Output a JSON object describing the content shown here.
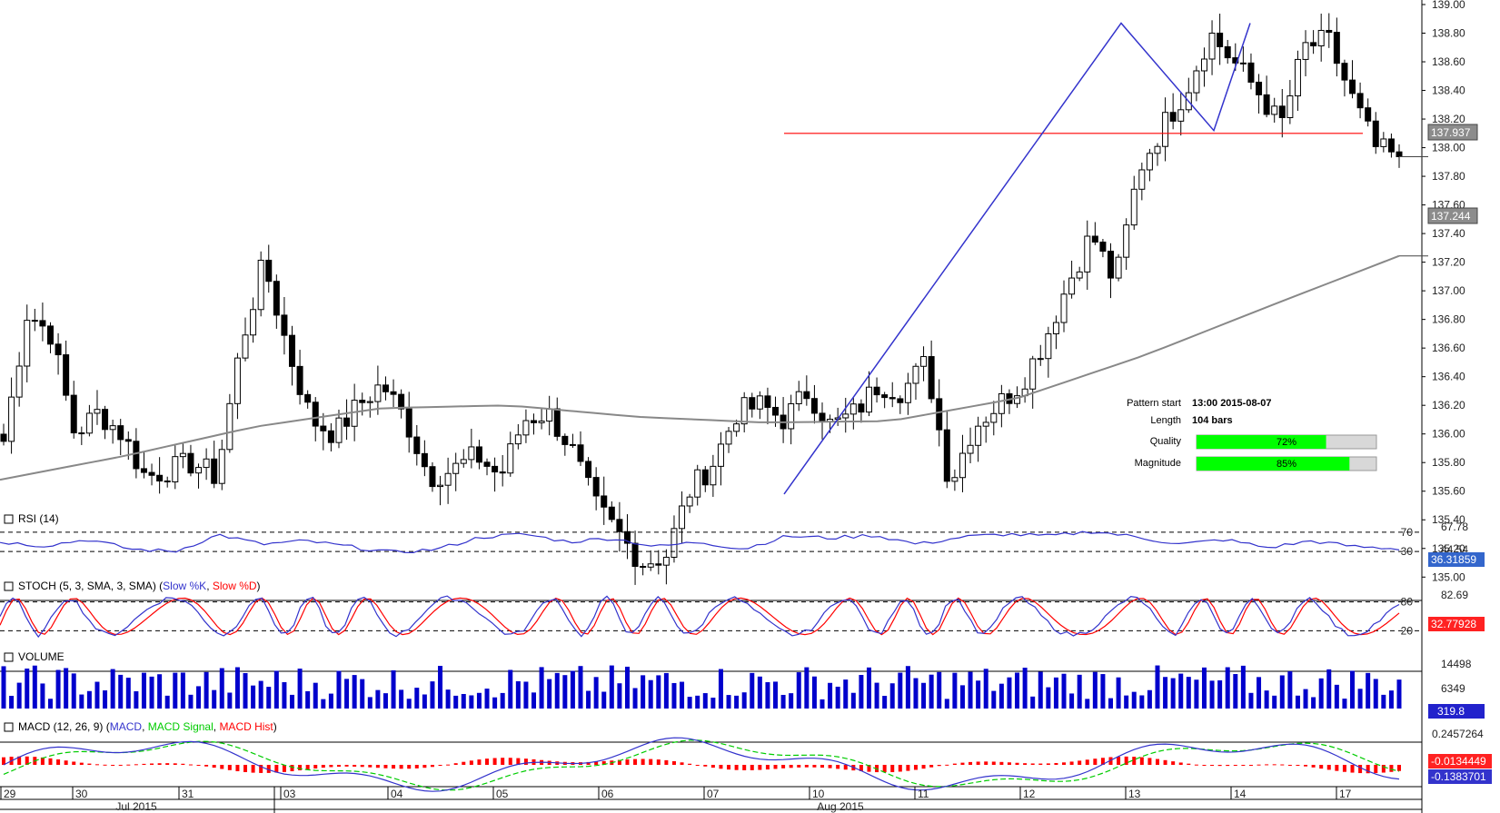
{
  "chart_data": {
    "type": "candlestick",
    "price_axis": {
      "ticks": [
        "139.00",
        "138.80",
        "138.60",
        "138.40",
        "138.20",
        "138.00",
        "137.80",
        "137.60",
        "137.40",
        "137.20",
        "137.00",
        "136.80",
        "136.60",
        "136.40",
        "136.20",
        "136.00",
        "135.80",
        "135.60",
        "135.40",
        "135.20",
        "135.00"
      ],
      "ylim": [
        134.97,
        139.0
      ],
      "last_price": "137.937",
      "ma_value": "137.244"
    },
    "time_axis": {
      "days": [
        "29",
        "30",
        "31",
        "03",
        "04",
        "05",
        "06",
        "07",
        "10",
        "11",
        "12",
        "13",
        "14",
        "17"
      ],
      "months": [
        "Jul 2015",
        "Aug 2015"
      ]
    },
    "ohlc_anchors": [
      135.95,
      136.85,
      136.7,
      136.0,
      136.15,
      136.0,
      135.7,
      135.75,
      135.8,
      135.7,
      136.6,
      137.2,
      136.6,
      136.1,
      136.0,
      136.2,
      136.35,
      136.1,
      135.7,
      135.75,
      135.85,
      135.7,
      136.1,
      136.15,
      135.9,
      135.5,
      135.3,
      135.1,
      135.15,
      135.6,
      135.8,
      136.15,
      136.2,
      136.1,
      136.3,
      136.05,
      136.15,
      136.35,
      136.3,
      136.5,
      135.65,
      136.05,
      136.2,
      136.35,
      136.65,
      137.05,
      137.4,
      137.05,
      137.85,
      138.15,
      138.4,
      138.8,
      138.6,
      138.4,
      138.15,
      138.7,
      138.75,
      138.35,
      138.0,
      137.92
    ],
    "pattern_lines": [
      {
        "from": [
          0,
          135.58
        ],
        "to": [
          0,
          138.87
        ]
      },
      {
        "from": [
          0,
          138.87
        ],
        "to": [
          0,
          138.12
        ]
      },
      {
        "from": [
          0,
          138.12
        ],
        "to": [
          0,
          138.87
        ]
      }
    ],
    "resistance_level": 138.1,
    "moving_average_anchors": [
      135.68,
      135.85,
      136.05,
      136.18,
      136.2,
      136.12,
      136.08,
      136.09,
      136.25,
      136.55,
      136.9,
      137.244
    ],
    "info": {
      "pattern_start_label": "Pattern start",
      "pattern_start_value": "13:00 2015-08-07",
      "length_label": "Length",
      "length_value": "104 bars",
      "quality_label": "Quality",
      "quality_value": "72%",
      "quality": 0.72,
      "magnitude_label": "Magnitude",
      "magnitude_value": "85%",
      "magnitude": 0.85
    },
    "rsi": {
      "title": "RSI (14)",
      "levels": [
        "70",
        "30"
      ],
      "ticks": [
        "67.78",
        "44.54"
      ],
      "current": "36.31859",
      "anchors": [
        50,
        42,
        55,
        35,
        30,
        65,
        45,
        52,
        40,
        28,
        35,
        60,
        66,
        50,
        58,
        40,
        50,
        35,
        62,
        58,
        64,
        45,
        60,
        66,
        62,
        72,
        60,
        45,
        55,
        38,
        52,
        40,
        36
      ]
    },
    "stoch": {
      "title": "STOCH (5, 3, SMA, 3, SMA)",
      "k_label": "Slow %K",
      "d_label": "Slow %D",
      "levels": [
        "80",
        "20"
      ],
      "ticks": [
        "82.69"
      ],
      "current": "32.77928"
    },
    "volume": {
      "title": "VOLUME",
      "ticks": [
        "14498",
        "6349"
      ],
      "current": "319.8"
    },
    "macd": {
      "title": "MACD (12, 26, 9)",
      "macd_label": "MACD",
      "signal_label": "MACD Signal",
      "hist_label": "MACD Hist",
      "ticks": [
        "0.2457264"
      ],
      "current_hist": "-0.0134449",
      "current_macd": "-0.1383701"
    },
    "colors": {
      "bull": "#ffffff",
      "bear": "#000000",
      "wick": "#000000",
      "ma": "#888888",
      "pattern": "#3333cc",
      "resistance": "#ff0000",
      "rsi_line": "#3333cc",
      "stoch_k": "#3333cc",
      "stoch_d": "#ff0000",
      "volume": "#0000cc",
      "macd_line": "#3333cc",
      "macd_signal": "#00cc00",
      "macd_hist": "#ff0000",
      "bar_fill": "#00ff00",
      "price_label_bg": "#8c8c8c"
    }
  }
}
